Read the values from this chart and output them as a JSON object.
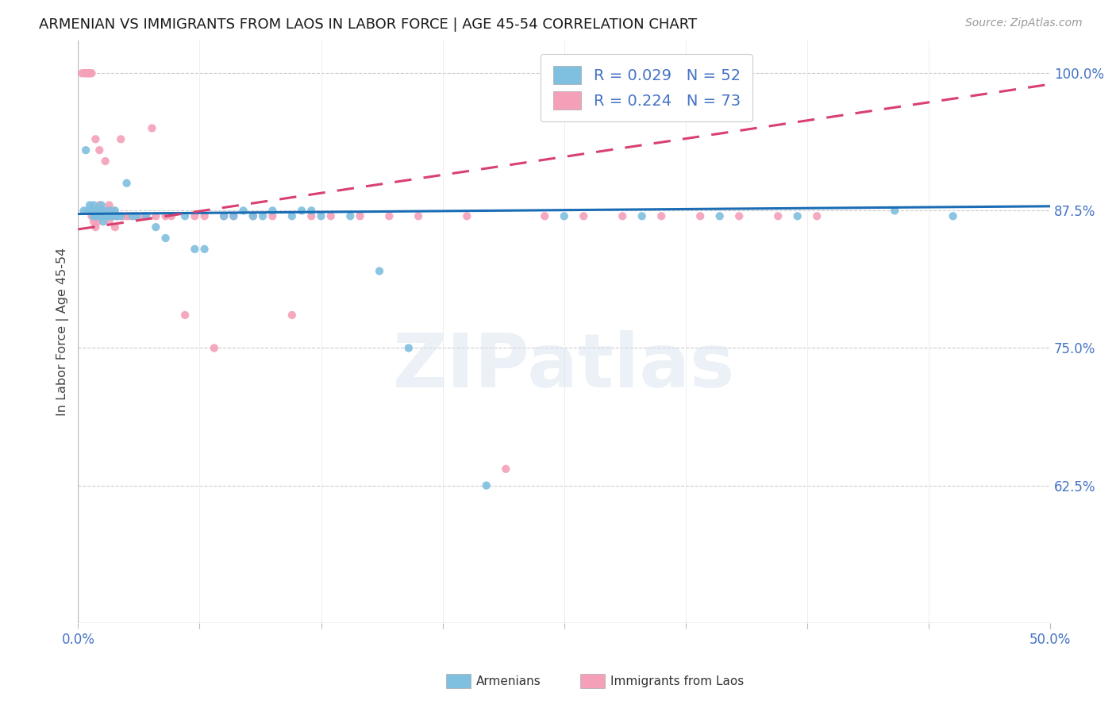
{
  "title": "ARMENIAN VS IMMIGRANTS FROM LAOS IN LABOR FORCE | AGE 45-54 CORRELATION CHART",
  "source": "Source: ZipAtlas.com",
  "ylabel": "In Labor Force | Age 45-54",
  "xlim": [
    0.0,
    0.5
  ],
  "ylim": [
    0.5,
    1.03
  ],
  "yticks": [
    0.625,
    0.75,
    0.875,
    1.0
  ],
  "ytick_labels": [
    "62.5%",
    "75.0%",
    "87.5%",
    "100.0%"
  ],
  "xticks": [
    0.0,
    0.0625,
    0.125,
    0.1875,
    0.25,
    0.3125,
    0.375,
    0.4375,
    0.5
  ],
  "xtick_labels": [
    "0.0%",
    "",
    "",
    "",
    "",
    "",
    "",
    "",
    "50.0%"
  ],
  "color_armenian": "#7fbfdf",
  "color_laos": "#f4a0b8",
  "color_line_armenian": "#1a6cb5",
  "color_line_laos": "#d94070",
  "legend_r_armenian": "R = 0.029",
  "legend_n_armenian": "N = 52",
  "legend_r_laos": "R = 0.224",
  "legend_n_laos": "N = 73",
  "watermark": "ZIPatlas",
  "armenian_x": [
    0.003,
    0.004,
    0.005,
    0.006,
    0.007,
    0.008,
    0.008,
    0.009,
    0.01,
    0.01,
    0.011,
    0.012,
    0.012,
    0.013,
    0.013,
    0.014,
    0.015,
    0.016,
    0.017,
    0.018,
    0.019,
    0.02,
    0.022,
    0.025,
    0.028,
    0.03,
    0.035,
    0.04,
    0.045,
    0.055,
    0.06,
    0.065,
    0.075,
    0.08,
    0.085,
    0.09,
    0.095,
    0.1,
    0.11,
    0.115,
    0.12,
    0.125,
    0.14,
    0.155,
    0.17,
    0.21,
    0.25,
    0.29,
    0.33,
    0.37,
    0.42,
    0.45
  ],
  "armenian_y": [
    0.875,
    0.93,
    0.875,
    0.88,
    0.875,
    0.87,
    0.88,
    0.87,
    0.87,
    0.875,
    0.875,
    0.88,
    0.87,
    0.875,
    0.865,
    0.87,
    0.87,
    0.875,
    0.87,
    0.87,
    0.875,
    0.87,
    0.87,
    0.9,
    0.87,
    0.87,
    0.87,
    0.86,
    0.85,
    0.87,
    0.84,
    0.84,
    0.87,
    0.87,
    0.875,
    0.87,
    0.87,
    0.875,
    0.87,
    0.875,
    0.875,
    0.87,
    0.87,
    0.82,
    0.75,
    0.625,
    0.87,
    0.87,
    0.87,
    0.87,
    0.875,
    0.87
  ],
  "laos_x": [
    0.002,
    0.003,
    0.004,
    0.004,
    0.005,
    0.005,
    0.006,
    0.006,
    0.007,
    0.007,
    0.007,
    0.008,
    0.008,
    0.008,
    0.009,
    0.009,
    0.01,
    0.01,
    0.01,
    0.011,
    0.011,
    0.012,
    0.012,
    0.013,
    0.013,
    0.014,
    0.014,
    0.015,
    0.015,
    0.016,
    0.016,
    0.017,
    0.018,
    0.018,
    0.019,
    0.02,
    0.02,
    0.022,
    0.023,
    0.025,
    0.026,
    0.028,
    0.03,
    0.033,
    0.035,
    0.038,
    0.04,
    0.045,
    0.048,
    0.055,
    0.06,
    0.065,
    0.07,
    0.075,
    0.08,
    0.09,
    0.1,
    0.11,
    0.12,
    0.13,
    0.145,
    0.16,
    0.175,
    0.2,
    0.22,
    0.24,
    0.26,
    0.28,
    0.3,
    0.32,
    0.34,
    0.36,
    0.38
  ],
  "laos_y": [
    1.0,
    1.0,
    1.0,
    1.0,
    1.0,
    1.0,
    1.0,
    1.0,
    1.0,
    0.875,
    0.87,
    0.875,
    0.87,
    0.865,
    0.94,
    0.86,
    0.875,
    0.87,
    0.865,
    0.88,
    0.93,
    0.875,
    0.87,
    0.87,
    0.87,
    0.87,
    0.92,
    0.875,
    0.87,
    0.88,
    0.865,
    0.87,
    0.875,
    0.87,
    0.86,
    0.87,
    0.87,
    0.94,
    0.87,
    0.87,
    0.87,
    0.87,
    0.87,
    0.87,
    0.87,
    0.95,
    0.87,
    0.87,
    0.87,
    0.78,
    0.87,
    0.87,
    0.75,
    0.87,
    0.87,
    0.87,
    0.87,
    0.78,
    0.87,
    0.87,
    0.87,
    0.87,
    0.87,
    0.87,
    0.64,
    0.87,
    0.87,
    0.87,
    0.87,
    0.87,
    0.87,
    0.87,
    0.87
  ],
  "arm_line_x": [
    0.0,
    0.5
  ],
  "arm_line_y": [
    0.872,
    0.879
  ],
  "laos_line_x": [
    0.0,
    0.5
  ],
  "laos_line_y": [
    0.858,
    0.99
  ]
}
